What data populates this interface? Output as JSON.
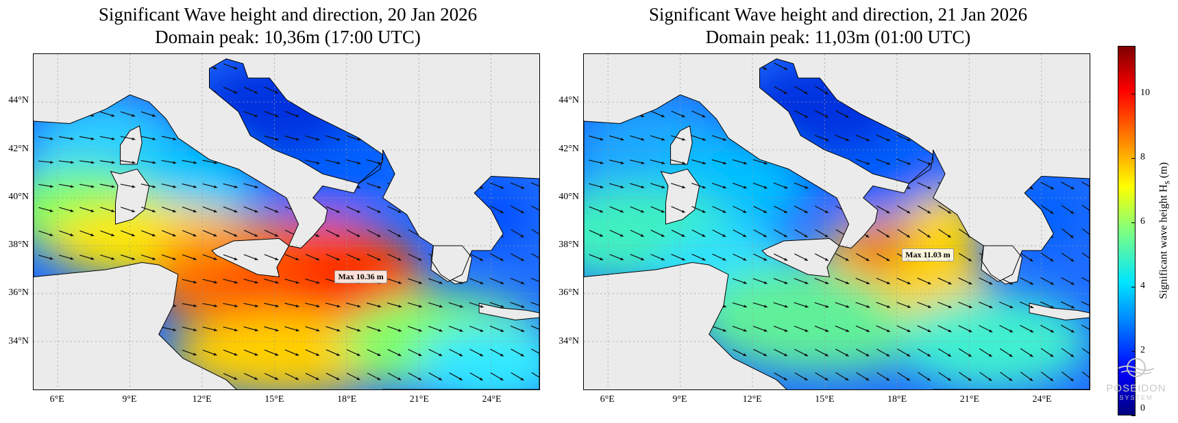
{
  "panels": [
    {
      "title_line1": "Significant Wave height and direction, 20 Jan 2026",
      "title_line2": "Domain peak: 10,36m (17:00 UTC)",
      "max_label": "Max 10.36 m",
      "max_lon": 17.5,
      "max_lat": 36.7
    },
    {
      "title_line1": "Significant Wave height and direction, 21 Jan 2026",
      "title_line2": "Domain peak: 11,03m (01:00 UTC)",
      "max_label": "Max 11.03 m",
      "max_lon": 18.2,
      "max_lat": 37.6
    }
  ],
  "lat_labels": [
    "44°N",
    "42°N",
    "40°N",
    "38°N",
    "36°N",
    "34°N"
  ],
  "lon_labels": [
    "6°E",
    "9°E",
    "12°E",
    "15°E",
    "18°E",
    "21°E",
    "24°E"
  ],
  "map_extent": {
    "lon_min": 5.0,
    "lon_max": 26.0,
    "lat_min": 32.0,
    "lat_max": 46.0
  },
  "colorbar": {
    "label": "Significant wave height H",
    "label_sub": "s",
    "label_unit": "(m)",
    "ticks": [
      "0",
      "2",
      "4",
      "6",
      "8",
      "10"
    ],
    "min": 0,
    "max": 11.5
  },
  "logo": {
    "name": "POSEIDON",
    "sub": "SYSTEM"
  },
  "colors": {
    "land": "#ebebeb",
    "arrow": "#111111",
    "coast": "#000000"
  }
}
